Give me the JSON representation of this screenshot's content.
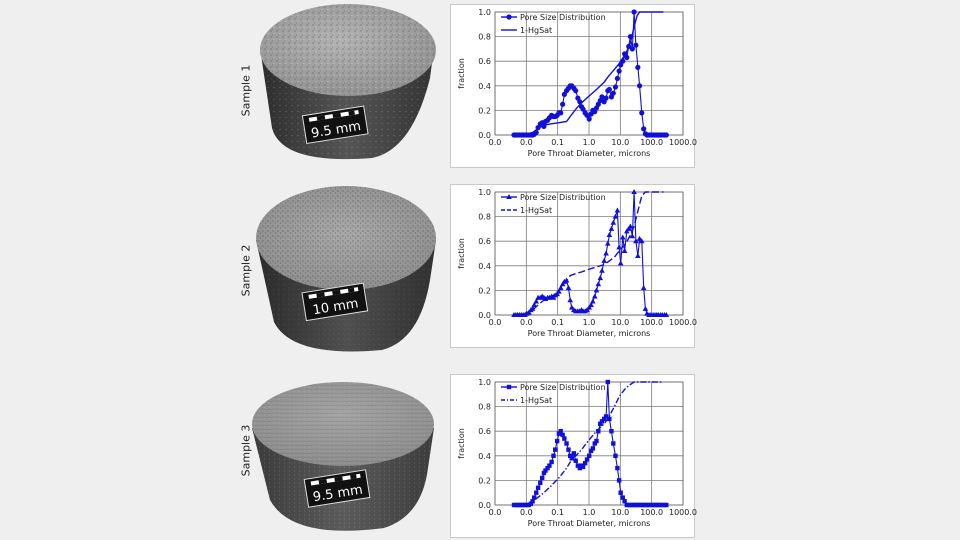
{
  "colors": {
    "series": "#1010d8",
    "grid": "#7c7c7c",
    "background": "#efefef"
  },
  "samples": [
    {
      "label": "Sample 1",
      "scale_label": "9.5 mm"
    },
    {
      "label": "Sample 2",
      "scale_label": "10 mm"
    },
    {
      "label": "Sample 3",
      "scale_label": "9.5 mm"
    }
  ],
  "chart_data": [
    {
      "type": "line",
      "title": "",
      "xlabel": "Pore Throat Diameter, microns",
      "ylabel": "fraction",
      "xscale": "log",
      "xlim": [
        0.01,
        1000
      ],
      "ylim": [
        0,
        1
      ],
      "xticks": [
        "0.0",
        "0.0",
        "0.1",
        "1.0",
        "10.0",
        "100.0",
        "1000.0"
      ],
      "yticks": [
        "0.0",
        "0.2",
        "0.4",
        "0.6",
        "0.8",
        "1.0"
      ],
      "grid": true,
      "legend": "top-left",
      "series": [
        {
          "name": "Pore Size Distribution",
          "marker": "circle",
          "line": "solid",
          "x": [
            0.032,
            0.036,
            0.04,
            0.045,
            0.05,
            0.056,
            0.063,
            0.07,
            0.08,
            0.09,
            0.1,
            0.11,
            0.125,
            0.14,
            0.16,
            0.18,
            0.2,
            0.22,
            0.25,
            0.28,
            0.32,
            0.36,
            0.4,
            0.45,
            0.5,
            0.56,
            0.63,
            0.7,
            0.8,
            0.9,
            1.0,
            1.1,
            1.25,
            1.4,
            1.6,
            1.8,
            2.0,
            2.2,
            2.5,
            2.8,
            3.2,
            3.6,
            4.0,
            4.5,
            5.0,
            5.6,
            6.3,
            7.0,
            8.0,
            9.0,
            10,
            11,
            12.5,
            14,
            16,
            18,
            20,
            22,
            25,
            28,
            32,
            36,
            40,
            45,
            50,
            56,
            63,
            70,
            80,
            90,
            100,
            110,
            125,
            140,
            160,
            180,
            200,
            220,
            250,
            280,
            320,
            360
          ],
          "y": [
            0,
            0,
            0,
            0,
            0,
            0,
            0,
            0,
            0,
            0,
            0,
            0.005,
            0.02,
            0.06,
            0.09,
            0.1,
            0.07,
            0.11,
            0.12,
            0.14,
            0.16,
            0.15,
            0.15,
            0.16,
            0.18,
            0.18,
            0.25,
            0.33,
            0.36,
            0.38,
            0.4,
            0.4,
            0.38,
            0.36,
            0.3,
            0.27,
            0.23,
            0.21,
            0.18,
            0.16,
            0.13,
            0.17,
            0.2,
            0.19,
            0.22,
            0.25,
            0.28,
            0.31,
            0.27,
            0.3,
            0.36,
            0.37,
            0.31,
            0.34,
            0.39,
            0.46,
            0.52,
            0.57,
            0.6,
            0.66,
            0.63,
            0.72,
            0.8,
            0.7,
            1.0,
            0.73,
            0.55,
            0.4,
            0.18,
            0.05,
            0.01,
            0,
            0,
            0,
            0,
            0,
            0,
            0,
            0,
            0,
            0,
            0
          ]
        },
        {
          "name": "1-HgSat",
          "marker": "none",
          "line": "solid",
          "x": [
            0.032,
            0.04,
            0.06,
            0.1,
            0.15,
            0.2,
            0.3,
            0.5,
            0.8,
            1.0,
            1.5,
            2,
            3,
            5,
            8,
            10,
            20,
            30,
            40,
            50,
            60,
            70,
            80,
            100,
            150,
            300
          ],
          "y": [
            0,
            0,
            0.003,
            0.02,
            0.06,
            0.08,
            0.09,
            0.1,
            0.11,
            0.15,
            0.22,
            0.26,
            0.31,
            0.37,
            0.43,
            0.47,
            0.58,
            0.66,
            0.75,
            0.88,
            0.97,
            1.0,
            1.0,
            1.0,
            1.0,
            1.0
          ]
        }
      ]
    },
    {
      "type": "line",
      "title": "",
      "xlabel": "Pore Throat Diameter, microns",
      "ylabel": "fraction",
      "xscale": "log",
      "xlim": [
        0.01,
        1000
      ],
      "ylim": [
        0,
        1
      ],
      "xticks": [
        "0.0",
        "0.0",
        "0.1",
        "1.0",
        "10.0",
        "100.0",
        "1000.0"
      ],
      "yticks": [
        "0.0",
        "0.2",
        "0.4",
        "0.6",
        "0.8",
        "1.0"
      ],
      "grid": true,
      "legend": "top-left",
      "series": [
        {
          "name": "Pore Size Distribution",
          "marker": "triangle",
          "line": "solid",
          "x": [
            0.032,
            0.036,
            0.04,
            0.045,
            0.05,
            0.056,
            0.063,
            0.07,
            0.08,
            0.09,
            0.1,
            0.11,
            0.125,
            0.14,
            0.16,
            0.18,
            0.2,
            0.22,
            0.25,
            0.28,
            0.32,
            0.36,
            0.4,
            0.45,
            0.5,
            0.56,
            0.63,
            0.7,
            0.8,
            0.9,
            1.0,
            1.1,
            1.25,
            1.4,
            1.6,
            1.8,
            2.0,
            2.2,
            2.5,
            2.8,
            3.2,
            3.6,
            4.0,
            4.5,
            5.0,
            5.6,
            6.3,
            7.0,
            8.0,
            9.0,
            10,
            11,
            12.5,
            14,
            16,
            18,
            20,
            22,
            25,
            28,
            32,
            36,
            40,
            45,
            50,
            56,
            63,
            70,
            80,
            90,
            100,
            110,
            125,
            140,
            160,
            180,
            200,
            220,
            250,
            280,
            320,
            360
          ],
          "y": [
            0,
            0,
            0,
            0,
            0,
            0,
            0,
            0.01,
            0.02,
            0.04,
            0.05,
            0.08,
            0.11,
            0.14,
            0.14,
            0.15,
            0.14,
            0.13,
            0.14,
            0.14,
            0.15,
            0.14,
            0.16,
            0.17,
            0.19,
            0.22,
            0.25,
            0.27,
            0.28,
            0.22,
            0.12,
            0.06,
            0.04,
            0.03,
            0.03,
            0.03,
            0.04,
            0.03,
            0.03,
            0.04,
            0.06,
            0.08,
            0.11,
            0.15,
            0.2,
            0.25,
            0.3,
            0.36,
            0.44,
            0.5,
            0.58,
            0.65,
            0.7,
            0.75,
            0.8,
            0.85,
            0.55,
            0.42,
            0.63,
            0.52,
            0.68,
            0.7,
            0.72,
            0.64,
            1.0,
            0.6,
            0.48,
            0.62,
            0.6,
            0.22,
            0.05,
            0.01,
            0,
            0,
            0,
            0,
            0,
            0,
            0,
            0,
            0,
            0
          ]
        },
        {
          "name": "1-HgSat",
          "marker": "none",
          "line": "dashed",
          "x": [
            0.032,
            0.04,
            0.06,
            0.1,
            0.15,
            0.2,
            0.3,
            0.5,
            0.7,
            0.9,
            1.0,
            1.5,
            2,
            3,
            5,
            8,
            10,
            15,
            20,
            30,
            40,
            50,
            60,
            80,
            100,
            150,
            300
          ],
          "y": [
            0,
            0,
            0.01,
            0.04,
            0.09,
            0.12,
            0.14,
            0.2,
            0.26,
            0.3,
            0.32,
            0.34,
            0.35,
            0.37,
            0.39,
            0.41,
            0.43,
            0.47,
            0.52,
            0.58,
            0.65,
            0.72,
            0.82,
            0.97,
            1.0,
            1.0,
            1.0
          ]
        }
      ]
    },
    {
      "type": "line",
      "title": "",
      "xlabel": "Pore Throat Diameter, microns",
      "ylabel": "fraction",
      "xscale": "log",
      "xlim": [
        0.01,
        1000
      ],
      "ylim": [
        0,
        1
      ],
      "xticks": [
        "0.0",
        "0.0",
        "0.1",
        "1.0",
        "10.0",
        "100.0",
        "1000.0"
      ],
      "yticks": [
        "0.0",
        "0.2",
        "0.4",
        "0.6",
        "0.8",
        "1.0"
      ],
      "grid": true,
      "legend": "top-left",
      "series": [
        {
          "name": "Pore Size Distribution",
          "marker": "square",
          "line": "solid",
          "x": [
            0.032,
            0.036,
            0.04,
            0.045,
            0.05,
            0.056,
            0.063,
            0.07,
            0.08,
            0.09,
            0.1,
            0.11,
            0.125,
            0.14,
            0.16,
            0.18,
            0.2,
            0.22,
            0.25,
            0.28,
            0.32,
            0.36,
            0.4,
            0.45,
            0.5,
            0.56,
            0.63,
            0.7,
            0.8,
            0.9,
            1.0,
            1.1,
            1.25,
            1.4,
            1.6,
            1.8,
            2.0,
            2.2,
            2.5,
            2.8,
            3.2,
            3.6,
            4.0,
            4.5,
            5.0,
            5.6,
            6.3,
            7.0,
            8.0,
            9.0,
            10,
            11,
            12.5,
            14,
            16,
            18,
            20,
            22,
            25,
            28,
            32,
            36,
            40,
            45,
            50,
            56,
            63,
            70,
            80,
            90,
            100,
            110,
            125,
            140,
            160,
            180,
            200,
            220,
            250,
            280,
            320,
            360
          ],
          "y": [
            0,
            0,
            0,
            0,
            0,
            0,
            0,
            0,
            0,
            0.01,
            0.03,
            0.06,
            0.1,
            0.14,
            0.18,
            0.22,
            0.26,
            0.28,
            0.3,
            0.32,
            0.35,
            0.4,
            0.45,
            0.52,
            0.58,
            0.6,
            0.57,
            0.54,
            0.5,
            0.45,
            0.4,
            0.38,
            0.42,
            0.36,
            0.32,
            0.3,
            0.32,
            0.31,
            0.34,
            0.37,
            0.4,
            0.44,
            0.46,
            0.5,
            0.52,
            0.6,
            0.66,
            0.68,
            0.7,
            0.72,
            1.0,
            0.7,
            0.6,
            0.5,
            0.4,
            0.3,
            0.2,
            0.1,
            0.06,
            0.03,
            0,
            0,
            0,
            0,
            0,
            0,
            0,
            0,
            0,
            0,
            0,
            0,
            0,
            0,
            0,
            0,
            0,
            0,
            0,
            0,
            0,
            0
          ]
        },
        {
          "name": "1-HgSat",
          "marker": "none",
          "line": "dash-dot",
          "x": [
            0.032,
            0.05,
            0.08,
            0.1,
            0.15,
            0.2,
            0.3,
            0.5,
            0.8,
            1.0,
            2,
            3,
            5,
            8,
            10,
            15,
            20,
            25,
            30,
            40,
            50,
            60,
            80,
            100,
            150,
            300
          ],
          "y": [
            0,
            0,
            0.01,
            0.03,
            0.07,
            0.1,
            0.15,
            0.22,
            0.3,
            0.35,
            0.45,
            0.52,
            0.6,
            0.66,
            0.7,
            0.8,
            0.88,
            0.92,
            0.95,
            0.98,
            1.0,
            1.0,
            1.0,
            1.0,
            1.0,
            1.0
          ]
        }
      ]
    }
  ]
}
